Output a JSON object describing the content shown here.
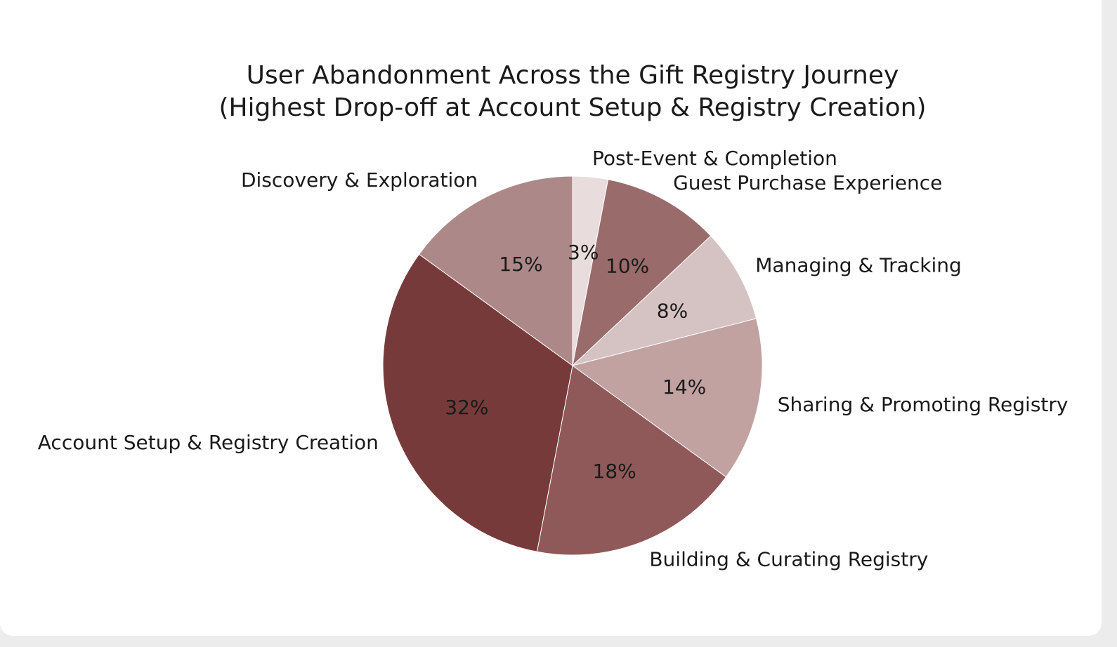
{
  "chart_data": {
    "type": "pie",
    "title": "User Abandonment Across the Gift Registry Journey",
    "subtitle": "(Highest Drop-off at Account Setup & Registry Creation)",
    "start_angle_deg": 90,
    "direction": "clockwise",
    "slices": [
      {
        "label": "Post-Event & Completion",
        "value": 3,
        "pct_label": "3%",
        "color": "#e9dcdc"
      },
      {
        "label": "Guest Purchase Experience",
        "value": 10,
        "pct_label": "10%",
        "color": "#9a6b6b"
      },
      {
        "label": "Managing & Tracking",
        "value": 8,
        "pct_label": "8%",
        "color": "#d5c2c2"
      },
      {
        "label": "Sharing & Promoting Registry",
        "value": 14,
        "pct_label": "14%",
        "color": "#c2a1a1"
      },
      {
        "label": "Building & Curating Registry",
        "value": 18,
        "pct_label": "18%",
        "color": "#8f5959"
      },
      {
        "label": "Account Setup & Registry Creation",
        "value": 32,
        "pct_label": "32%",
        "color": "#773a3a"
      },
      {
        "label": "Discovery & Exploration",
        "value": 15,
        "pct_label": "15%",
        "color": "#ad8888"
      }
    ]
  }
}
